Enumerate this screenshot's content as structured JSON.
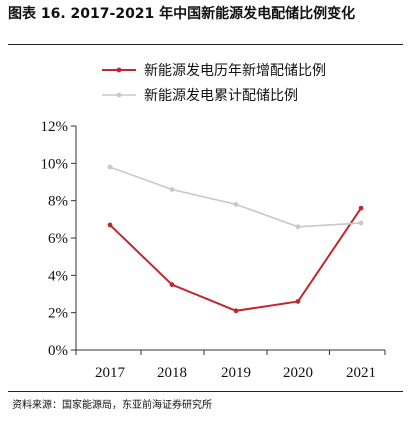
{
  "header": {
    "title": "图表 16. 2017-2021 年中国新能源发电配储比例变化"
  },
  "chart_data": {
    "type": "line",
    "x": [
      "2017",
      "2018",
      "2019",
      "2020",
      "2021"
    ],
    "series": [
      {
        "name": "新能源发电历年新增配储比例",
        "color": "#c0282e",
        "values": [
          6.7,
          3.5,
          2.1,
          2.6,
          7.6
        ]
      },
      {
        "name": "新能源发电累计配储比例",
        "color": "#c8c8c8",
        "values": [
          9.8,
          8.6,
          7.8,
          6.6,
          6.8
        ]
      }
    ],
    "ylim": [
      0,
      12
    ],
    "yticks": [
      "0%",
      "2%",
      "4%",
      "6%",
      "8%",
      "10%",
      "12%"
    ],
    "ytick_values": [
      0,
      2,
      4,
      6,
      8,
      10,
      12
    ],
    "legend": "top",
    "grid": false
  },
  "footer": {
    "source": "资料来源：国家能源局，东亚前海证券研究所"
  }
}
